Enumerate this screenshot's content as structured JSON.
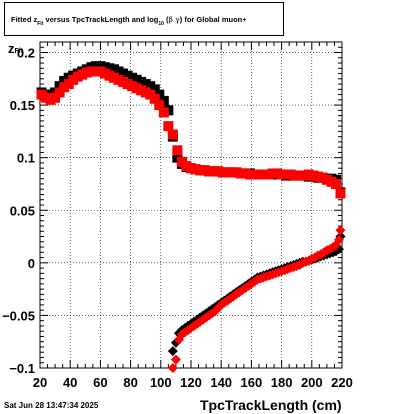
{
  "title": {
    "prefix": "Fitted  z",
    "sub1": "Fit",
    "mid": "  versus TpcTrackLength and log",
    "sub2": "10",
    "paren_open": " (",
    "greek": "β  γ",
    "paren_close": ") for Global muon+"
  },
  "footer": {
    "timestamp": "Sat Jun 28 13:47:34 2025"
  },
  "axes": {
    "xlabel": "TpcTrackLength (cm)",
    "ylabel_main": "z",
    "ylabel_sub": "Fit"
  },
  "chart_data": {
    "type": "scatter",
    "title": "Fitted z_Fit versus TpcTrackLength and log_10 (β γ) for Global muon+",
    "xlabel": "TpcTrackLength (cm)",
    "ylabel": "z_Fit",
    "xlim": [
      20,
      220
    ],
    "ylim": [
      -0.1,
      0.21
    ],
    "x_ticks": [
      20,
      40,
      60,
      80,
      100,
      120,
      140,
      160,
      180,
      200,
      220
    ],
    "y_ticks": [
      -0.1,
      -0.05,
      0,
      0.05,
      0.1,
      0.15,
      0.2
    ],
    "x_tick_labels": [
      "20",
      "40",
      "60",
      "80",
      "100",
      "120",
      "140",
      "160",
      "180",
      "200",
      "220"
    ],
    "y_tick_labels": [
      "−0.1",
      "−0.05",
      "0",
      "0.05",
      "0.1",
      "0.15",
      "0.2"
    ],
    "grid": true,
    "colors": {
      "black": "#000000",
      "red": "#ff0000"
    },
    "series": [
      {
        "color": "#000000",
        "marker": "square",
        "x": [
          21,
          24,
          27,
          30,
          33,
          36,
          39,
          42,
          45,
          48,
          51,
          54,
          57,
          60,
          63,
          66,
          69,
          72,
          75,
          78,
          81,
          84,
          87,
          90,
          93,
          96,
          99,
          102,
          105,
          108,
          111,
          114,
          117,
          120,
          123,
          126,
          129,
          132,
          135,
          138,
          141,
          144,
          147,
          150,
          153,
          156,
          159,
          162,
          165,
          168,
          171,
          174,
          177,
          180,
          183,
          186,
          189,
          192,
          195,
          198,
          201,
          204,
          207,
          210,
          213,
          216,
          219
        ],
        "y": [
          0.162,
          0.16,
          0.158,
          0.162,
          0.168,
          0.173,
          0.176,
          0.178,
          0.18,
          0.182,
          0.184,
          0.186,
          0.187,
          0.187,
          0.186,
          0.185,
          0.184,
          0.182,
          0.18,
          0.178,
          0.176,
          0.174,
          0.172,
          0.17,
          0.168,
          0.165,
          0.16,
          0.154,
          0.145,
          0.12,
          0.1,
          0.094,
          0.091,
          0.09,
          0.089,
          0.088,
          0.088,
          0.087,
          0.087,
          0.087,
          0.086,
          0.086,
          0.086,
          0.086,
          0.085,
          0.085,
          0.085,
          0.084,
          0.084,
          0.084,
          0.084,
          0.084,
          0.084,
          0.084,
          0.083,
          0.083,
          0.083,
          0.083,
          0.083,
          0.082,
          0.082,
          0.081,
          0.081,
          0.08,
          0.08,
          0.079,
          0.067
        ]
      },
      {
        "color": "#ff0000",
        "marker": "square",
        "x": [
          21,
          24,
          27,
          30,
          33,
          36,
          39,
          42,
          45,
          48,
          51,
          54,
          57,
          60,
          63,
          66,
          69,
          72,
          75,
          78,
          81,
          84,
          87,
          90,
          93,
          96,
          99,
          102,
          105,
          108,
          111,
          114,
          117,
          120,
          123,
          126,
          129,
          132,
          135,
          138,
          141,
          144,
          147,
          150,
          153,
          156,
          159,
          162,
          165,
          168,
          171,
          174,
          177,
          180,
          183,
          186,
          189,
          192,
          195,
          198,
          201,
          204,
          207,
          210,
          213,
          216,
          219
        ],
        "y": [
          0.16,
          0.157,
          0.155,
          0.157,
          0.162,
          0.167,
          0.17,
          0.174,
          0.177,
          0.179,
          0.181,
          0.182,
          0.182,
          0.182,
          0.18,
          0.178,
          0.176,
          0.174,
          0.172,
          0.17,
          0.168,
          0.166,
          0.164,
          0.162,
          0.16,
          0.156,
          0.15,
          0.143,
          0.13,
          0.122,
          0.107,
          0.096,
          0.092,
          0.09,
          0.089,
          0.088,
          0.088,
          0.087,
          0.087,
          0.087,
          0.086,
          0.086,
          0.086,
          0.086,
          0.085,
          0.085,
          0.084,
          0.084,
          0.084,
          0.084,
          0.084,
          0.085,
          0.085,
          0.084,
          0.084,
          0.084,
          0.083,
          0.083,
          0.083,
          0.084,
          0.083,
          0.082,
          0.081,
          0.079,
          0.077,
          0.075,
          0.066
        ]
      },
      {
        "color": "#000000",
        "marker": "diamond",
        "x": [
          108,
          110,
          112,
          114,
          116,
          118,
          120,
          122,
          124,
          126,
          128,
          130,
          132,
          134,
          136,
          138,
          140,
          142,
          144,
          146,
          148,
          150,
          152,
          154,
          156,
          158,
          160,
          162,
          164,
          166,
          168,
          170,
          172,
          174,
          176,
          178,
          180,
          182,
          184,
          186,
          188,
          190,
          192,
          194,
          196,
          198,
          200,
          202,
          204,
          206,
          208,
          210,
          212,
          214,
          216,
          218,
          219
        ],
        "y": [
          -0.084,
          -0.076,
          -0.067,
          -0.064,
          -0.062,
          -0.06,
          -0.058,
          -0.056,
          -0.054,
          -0.052,
          -0.05,
          -0.048,
          -0.046,
          -0.044,
          -0.042,
          -0.04,
          -0.038,
          -0.036,
          -0.034,
          -0.032,
          -0.03,
          -0.028,
          -0.026,
          -0.024,
          -0.022,
          -0.02,
          -0.018,
          -0.016,
          -0.014,
          -0.013,
          -0.012,
          -0.011,
          -0.01,
          -0.009,
          -0.008,
          -0.007,
          -0.006,
          -0.005,
          -0.004,
          -0.003,
          -0.002,
          -0.001,
          0.0,
          0.001,
          0.001,
          0.002,
          0.003,
          0.004,
          0.005,
          0.006,
          0.007,
          0.008,
          0.009,
          0.01,
          0.011,
          0.013,
          0.025
        ]
      },
      {
        "color": "#ff0000",
        "marker": "diamond",
        "x": [
          108,
          110,
          112,
          114,
          116,
          118,
          120,
          122,
          124,
          126,
          128,
          130,
          132,
          134,
          136,
          138,
          140,
          142,
          144,
          146,
          148,
          150,
          152,
          154,
          156,
          158,
          160,
          162,
          164,
          166,
          168,
          170,
          172,
          174,
          176,
          178,
          180,
          182,
          184,
          186,
          188,
          190,
          192,
          194,
          196,
          198,
          200,
          202,
          204,
          206,
          208,
          210,
          212,
          214,
          216,
          218,
          219
        ],
        "y": [
          -0.1,
          -0.092,
          -0.073,
          -0.068,
          -0.066,
          -0.064,
          -0.062,
          -0.06,
          -0.058,
          -0.056,
          -0.054,
          -0.052,
          -0.05,
          -0.048,
          -0.046,
          -0.043,
          -0.04,
          -0.038,
          -0.036,
          -0.034,
          -0.032,
          -0.03,
          -0.028,
          -0.026,
          -0.024,
          -0.022,
          -0.02,
          -0.018,
          -0.016,
          -0.015,
          -0.014,
          -0.013,
          -0.012,
          -0.011,
          -0.01,
          -0.009,
          -0.008,
          -0.007,
          -0.006,
          -0.005,
          -0.004,
          -0.003,
          -0.002,
          0.0,
          0.001,
          0.002,
          0.004,
          0.005,
          0.007,
          0.008,
          0.01,
          0.012,
          0.013,
          0.015,
          0.017,
          0.022,
          0.031
        ]
      }
    ]
  }
}
